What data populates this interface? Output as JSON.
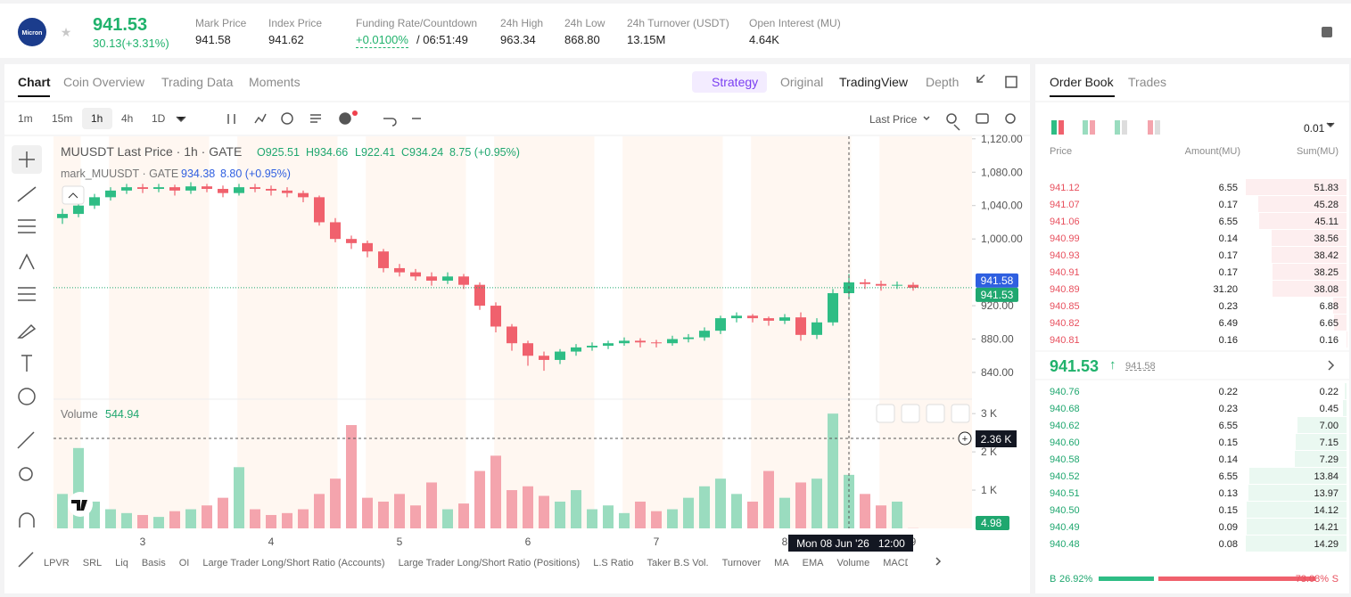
{
  "header": {
    "symbol_icon": "Micron",
    "price": "941.53",
    "change": "30.13(+3.31%)",
    "stats": [
      {
        "label": "Mark Price",
        "value": "941.58"
      },
      {
        "label": "Index Price",
        "value": "941.62"
      },
      {
        "label": "Funding Rate/Countdown",
        "value": "+0.0100%",
        "extra": "/ 06:51:49"
      },
      {
        "label": "24h High",
        "value": "963.34"
      },
      {
        "label": "24h Low",
        "value": "868.80"
      },
      {
        "label": "24h Turnover (USDT)",
        "value": "13.15M"
      },
      {
        "label": "Open Interest (MU)",
        "value": "4.64K"
      }
    ]
  },
  "chart_tabs": [
    "Chart",
    "Coin Overview",
    "Trading Data",
    "Moments"
  ],
  "view_tabs": [
    "Strategy",
    "Original",
    "TradingView",
    "Depth"
  ],
  "intervals": [
    "1m",
    "15m",
    "1h",
    "4h",
    "1D"
  ],
  "price_type": "Last Price",
  "chart_data": {
    "type": "candlestick",
    "title": "MUUSDT Last Price · 1h · GATE",
    "ohlc_legend": {
      "open": "O925.51",
      "high": "H934.66",
      "low": "L922.41",
      "close": "C934.24",
      "change": "8.75 (+0.95%)"
    },
    "mark_legend": {
      "name": "mark_MUUSDT · GATE",
      "value": "934.38",
      "change": "8.80 (+0.95%)"
    },
    "categories": [
      null,
      null,
      null,
      null,
      null,
      "3",
      null,
      null,
      null,
      null,
      null,
      null,
      null,
      "4",
      null,
      null,
      null,
      null,
      null,
      null,
      null,
      "5",
      null,
      null,
      null,
      null,
      null,
      null,
      null,
      "6",
      null,
      null,
      null,
      null,
      null,
      null,
      null,
      "7",
      null,
      null,
      null,
      null,
      null,
      null,
      null,
      "8",
      null,
      null,
      null,
      null,
      null,
      null,
      null,
      "9"
    ],
    "open": [
      1025,
      1030,
      1040,
      1050,
      1058,
      1062,
      1060,
      1062,
      1058,
      1063,
      1060,
      1055,
      1062,
      1060,
      1058,
      1055,
      1050,
      1020,
      1000,
      995,
      985,
      965,
      960,
      955,
      950,
      955,
      945,
      920,
      895,
      875,
      860,
      855,
      865,
      870,
      872,
      875,
      878,
      876,
      875,
      880,
      882,
      890,
      905,
      908,
      905,
      902,
      906,
      885,
      900,
      935,
      948,
      946,
      944,
      945
    ],
    "high": [
      1036,
      1045,
      1054,
      1062,
      1066,
      1066,
      1066,
      1065,
      1068,
      1066,
      1064,
      1066,
      1066,
      1064,
      1062,
      1058,
      1052,
      1025,
      1004,
      998,
      988,
      970,
      964,
      960,
      960,
      958,
      948,
      924,
      898,
      878,
      865,
      868,
      874,
      876,
      878,
      882,
      881,
      879,
      884,
      886,
      894,
      908,
      912,
      910,
      907,
      910,
      912,
      905,
      940,
      958,
      952,
      950,
      949,
      948
    ],
    "low": [
      1018,
      1026,
      1036,
      1046,
      1054,
      1055,
      1056,
      1052,
      1054,
      1056,
      1050,
      1052,
      1056,
      1052,
      1050,
      1044,
      1016,
      996,
      988,
      978,
      960,
      955,
      950,
      944,
      946,
      940,
      915,
      888,
      866,
      848,
      842,
      850,
      860,
      866,
      868,
      872,
      870,
      870,
      872,
      876,
      878,
      886,
      900,
      900,
      896,
      898,
      878,
      880,
      896,
      930,
      940,
      938,
      940,
      938
    ],
    "close": [
      1030,
      1040,
      1050,
      1058,
      1062,
      1060,
      1062,
      1058,
      1063,
      1060,
      1055,
      1062,
      1060,
      1058,
      1055,
      1050,
      1020,
      1000,
      995,
      985,
      965,
      960,
      955,
      950,
      955,
      945,
      920,
      895,
      875,
      860,
      855,
      865,
      870,
      872,
      875,
      878,
      876,
      875,
      880,
      882,
      890,
      905,
      908,
      905,
      902,
      906,
      885,
      900,
      935,
      948,
      946,
      944,
      945,
      941.53
    ],
    "up_color": "#2ebd85",
    "down_color": "#f0616d",
    "ylim": [
      809,
      1123
    ],
    "yticks": [
      {
        "value": 840,
        "label": "840.00"
      },
      {
        "value": 880,
        "label": "880.00"
      },
      {
        "value": 920,
        "label": "920.00"
      },
      {
        "value": 1000,
        "label": "1,000.00"
      },
      {
        "value": 1040,
        "label": "1,040.00"
      },
      {
        "value": 1080,
        "label": "1,080.00"
      },
      {
        "value": 1120,
        "label": "1,120.00"
      }
    ],
    "price_tags": [
      {
        "value": 941.58,
        "color": "#2f5fe0"
      },
      {
        "value": 941.53,
        "color": "#1fa76f"
      }
    ],
    "volume": {
      "name": "Volume",
      "legend_value": "544.94",
      "up_color": "#9adcbf",
      "down_color": "#f4a4ad",
      "values": [
        900,
        2100,
        700,
        500,
        400,
        350,
        300,
        450,
        500,
        600,
        800,
        1600,
        500,
        350,
        400,
        500,
        900,
        1300,
        2700,
        800,
        700,
        900,
        600,
        1200,
        500,
        650,
        1500,
        1900,
        1000,
        1100,
        850,
        700,
        1000,
        500,
        600,
        400,
        700,
        450,
        500,
        800,
        1100,
        1300,
        900,
        700,
        1500,
        800,
        1200,
        1300,
        3000,
        1400,
        900,
        600,
        700,
        4.98
      ],
      "ylim": [
        0,
        3330
      ],
      "yticks": [
        {
          "value": 1000,
          "label": "1 K"
        },
        {
          "value": 2000,
          "label": "2 K"
        },
        {
          "value": 3000,
          "label": "3 K"
        }
      ]
    },
    "crosshair": {
      "time_label": "Mon 08 Jun '26   12:00",
      "value_label": "2.36 K"
    }
  },
  "indicators": [
    "LPVR",
    "SRL",
    "Liq",
    "Basis",
    "OI",
    "Large Trader Long/Short Ratio (Accounts)",
    "Large Trader Long/Short Ratio (Positions)",
    "L.S Ratio",
    "Taker B.S Vol.",
    "Turnover",
    "MA",
    "EMA",
    "Volume",
    "MACD"
  ],
  "order_book": {
    "tabs": [
      "Order Book",
      "Trades"
    ],
    "tick_size": "0.01",
    "columns": [
      "Price",
      "Amount(MU)",
      "Sum(MU)"
    ],
    "asks": [
      [
        "941.12",
        "6.55",
        "51.83"
      ],
      [
        "941.07",
        "0.17",
        "45.28"
      ],
      [
        "941.06",
        "6.55",
        "45.11"
      ],
      [
        "940.99",
        "0.14",
        "38.56"
      ],
      [
        "940.93",
        "0.17",
        "38.42"
      ],
      [
        "940.91",
        "0.17",
        "38.25"
      ],
      [
        "940.89",
        "31.20",
        "38.08"
      ],
      [
        "940.85",
        "0.23",
        "6.88"
      ],
      [
        "940.82",
        "6.49",
        "6.65"
      ],
      [
        "940.81",
        "0.16",
        "0.16"
      ]
    ],
    "mid_price": "941.53",
    "mark_price": "941.58",
    "bids": [
      [
        "940.76",
        "0.22",
        "0.22"
      ],
      [
        "940.68",
        "0.23",
        "0.45"
      ],
      [
        "940.62",
        "6.55",
        "7.00"
      ],
      [
        "940.60",
        "0.15",
        "7.15"
      ],
      [
        "940.58",
        "0.14",
        "7.29"
      ],
      [
        "940.52",
        "6.55",
        "13.84"
      ],
      [
        "940.51",
        "0.13",
        "13.97"
      ],
      [
        "940.50",
        "0.15",
        "14.12"
      ],
      [
        "940.49",
        "0.09",
        "14.21"
      ],
      [
        "940.48",
        "0.08",
        "14.29"
      ]
    ],
    "buy_label": "B",
    "buy_ratio": "26.92%",
    "sell_ratio": "73.08%",
    "sell_label": "S"
  }
}
